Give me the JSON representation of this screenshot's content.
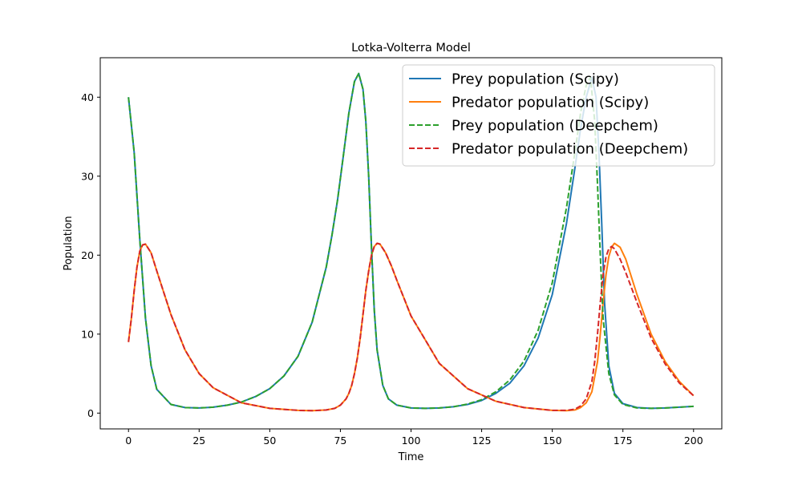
{
  "chart_data": {
    "type": "line",
    "title": "Lotka-Volterra Model",
    "xlabel": "Time",
    "ylabel": "Population",
    "xlim": [
      -10,
      210
    ],
    "ylim": [
      -2,
      45
    ],
    "xticks": [
      0,
      25,
      50,
      75,
      100,
      125,
      150,
      175,
      200
    ],
    "yticks": [
      0,
      10,
      20,
      30,
      40
    ],
    "grid": false,
    "legend_position": "top-right",
    "series": [
      {
        "name": "Prey population (Scipy)",
        "color": "#1f77b4",
        "dash": "solid",
        "x": [
          0,
          2,
          4,
          6,
          8,
          10,
          15,
          20,
          25,
          30,
          35,
          40,
          45,
          50,
          55,
          60,
          65,
          70,
          72,
          74,
          76,
          78,
          80,
          81.5,
          83,
          84,
          85,
          86,
          87,
          88,
          90,
          92,
          95,
          100,
          105,
          110,
          115,
          120,
          125,
          130,
          135,
          140,
          145,
          150,
          155,
          158,
          160,
          162,
          164,
          165.5,
          166.5,
          167.5,
          168.5,
          170,
          172,
          175,
          180,
          185,
          190,
          195,
          200
        ],
        "y": [
          40,
          33,
          22,
          12,
          6,
          3,
          1.1,
          0.7,
          0.65,
          0.75,
          1.0,
          1.4,
          2.1,
          3.1,
          4.7,
          7.2,
          11.5,
          18.5,
          22.5,
          27,
          32.5,
          38,
          42,
          43,
          41,
          37,
          30,
          21,
          13,
          8,
          3.5,
          1.8,
          1.0,
          0.65,
          0.6,
          0.65,
          0.8,
          1.1,
          1.6,
          2.5,
          3.8,
          6.0,
          9.5,
          15,
          24,
          31,
          36,
          40,
          42.5,
          40,
          33,
          24,
          14,
          6,
          2.5,
          1.2,
          0.7,
          0.6,
          0.65,
          0.75,
          0.85
        ]
      },
      {
        "name": "Predator population (Scipy)",
        "color": "#ff7f0e",
        "dash": "solid",
        "x": [
          0,
          1,
          2,
          3,
          4,
          5,
          6,
          8,
          10,
          15,
          20,
          25,
          30,
          40,
          50,
          60,
          65,
          70,
          73,
          75,
          77,
          78,
          79,
          80,
          81,
          82,
          83,
          84,
          85,
          86,
          87,
          88,
          89,
          91,
          93,
          95,
          100,
          110,
          120,
          130,
          140,
          150,
          155,
          158,
          160,
          162,
          164,
          166,
          167,
          168,
          169,
          170,
          171,
          172,
          174,
          176,
          180,
          185,
          190,
          195,
          200
        ],
        "y": [
          9,
          12,
          15.5,
          18.5,
          20.5,
          21.3,
          21.4,
          20.3,
          18,
          12.5,
          8,
          5,
          3.2,
          1.3,
          0.6,
          0.35,
          0.3,
          0.4,
          0.6,
          1.0,
          1.8,
          2.5,
          3.5,
          5,
          7,
          9.5,
          12.5,
          15.5,
          18,
          20,
          21.1,
          21.5,
          21.4,
          20.3,
          18.7,
          16.8,
          12.3,
          6.3,
          3.1,
          1.5,
          0.7,
          0.35,
          0.3,
          0.4,
          0.7,
          1.3,
          2.7,
          6.5,
          10,
          14,
          17.5,
          19.8,
          21,
          21.5,
          21,
          19.5,
          15,
          10,
          6.5,
          4,
          2.2
        ]
      },
      {
        "name": "Prey population (Deepchem)",
        "color": "#2ca02c",
        "dash": "dashed",
        "x": [
          0,
          2,
          4,
          6,
          8,
          10,
          15,
          20,
          25,
          30,
          35,
          40,
          45,
          50,
          55,
          60,
          65,
          70,
          72,
          74,
          76,
          78,
          80,
          81.5,
          83,
          84,
          85,
          86,
          87,
          88,
          90,
          92,
          95,
          100,
          105,
          110,
          115,
          120,
          125,
          130,
          135,
          140,
          145,
          150,
          155,
          158,
          160,
          162,
          163.5,
          165,
          166,
          167,
          168,
          170,
          172,
          175,
          180,
          185,
          190,
          195,
          200
        ],
        "y": [
          40,
          33,
          22,
          12,
          6,
          3,
          1.1,
          0.7,
          0.65,
          0.75,
          1.0,
          1.4,
          2.1,
          3.1,
          4.7,
          7.2,
          11.5,
          18.5,
          22.5,
          27,
          32.5,
          38,
          42,
          43,
          41,
          37,
          30,
          21,
          13,
          8,
          3.5,
          1.8,
          1.0,
          0.65,
          0.6,
          0.65,
          0.8,
          1.15,
          1.7,
          2.7,
          4.2,
          6.6,
          10.5,
          16.5,
          26,
          33,
          38,
          41.5,
          42.5,
          37,
          29,
          20,
          12,
          5,
          2.3,
          1.1,
          0.65,
          0.6,
          0.65,
          0.75,
          0.85
        ]
      },
      {
        "name": "Predator population (Deepchem)",
        "color": "#d62728",
        "dash": "dashed",
        "x": [
          0,
          1,
          2,
          3,
          4,
          5,
          6,
          8,
          10,
          15,
          20,
          25,
          30,
          40,
          50,
          60,
          65,
          70,
          73,
          75,
          77,
          78,
          79,
          80,
          81,
          82,
          83,
          84,
          85,
          86,
          87,
          88,
          89,
          91,
          93,
          95,
          100,
          110,
          120,
          130,
          140,
          150,
          155,
          158,
          160,
          162,
          164,
          165,
          166,
          167,
          168,
          169,
          170,
          171,
          172,
          174,
          176,
          180,
          185,
          190,
          195,
          200
        ],
        "y": [
          9,
          12,
          15.5,
          18.5,
          20.5,
          21.3,
          21.4,
          20.3,
          18,
          12.5,
          8,
          5,
          3.2,
          1.3,
          0.6,
          0.35,
          0.3,
          0.4,
          0.6,
          1.0,
          1.8,
          2.5,
          3.5,
          5,
          7,
          9.5,
          12.5,
          15.5,
          18,
          20,
          21.1,
          21.5,
          21.4,
          20.3,
          18.7,
          16.8,
          12.3,
          6.3,
          3.1,
          1.5,
          0.7,
          0.35,
          0.35,
          0.5,
          0.9,
          1.8,
          4,
          6.5,
          10,
          14,
          17.5,
          19.8,
          20.8,
          21.1,
          20.8,
          19.5,
          17.8,
          14,
          9.5,
          6.2,
          3.8,
          2.2
        ]
      }
    ]
  }
}
